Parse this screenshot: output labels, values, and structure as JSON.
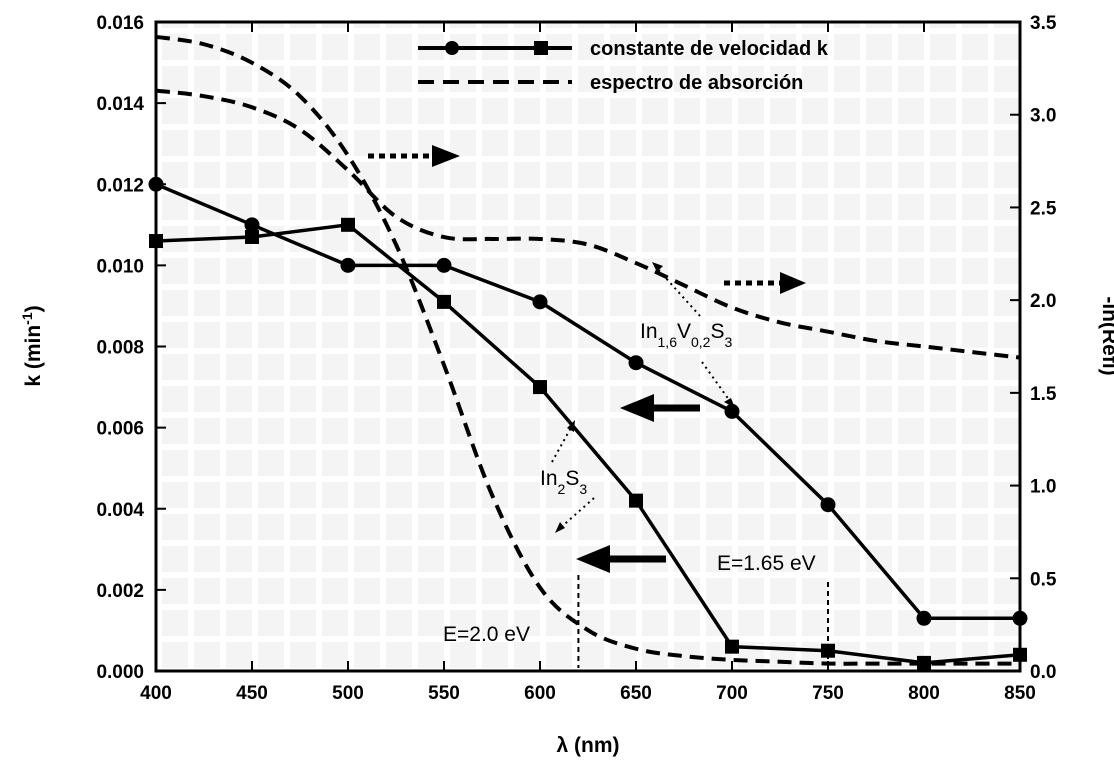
{
  "chart_data": {
    "type": "line",
    "xlabel": "λ (nm)",
    "ylabel_left": {
      "main": "k (min",
      "sup": "-1",
      "tail": ")"
    },
    "ylabel_right": "-ln(Refl)",
    "xlim": [
      400,
      850
    ],
    "ylim_left": [
      0.0,
      0.016
    ],
    "ylim_right": [
      0.0,
      3.5
    ],
    "x_ticks": [
      400,
      450,
      500,
      550,
      600,
      650,
      700,
      750,
      800,
      850
    ],
    "x_tick_labels": [
      "400",
      "450",
      "500",
      "550",
      "600",
      "650",
      "700",
      "750",
      "800",
      "850"
    ],
    "y_left_ticks": [
      0.0,
      0.002,
      0.004,
      0.006,
      0.008,
      0.01,
      0.012,
      0.014,
      0.016
    ],
    "y_left_tick_labels": [
      "0.000",
      "0.002",
      "0.004",
      "0.006",
      "0.008",
      "0.010",
      "0.012",
      "0.014",
      "0.016"
    ],
    "y_right_ticks": [
      0.0,
      0.5,
      1.0,
      1.5,
      2.0,
      2.5,
      3.0,
      3.5
    ],
    "y_right_tick_labels": [
      "0.0",
      "0.5",
      "1.0",
      "1.5",
      "2.0",
      "2.5",
      "3.0",
      "3.5"
    ],
    "grid": false,
    "legend_position": "top-right",
    "legend": [
      {
        "label": "constante de velocidad k",
        "style": "solid-markers"
      },
      {
        "label": "espectro de absorción",
        "style": "dashed"
      }
    ],
    "series": [
      {
        "axis": "left",
        "marker": "circle",
        "line_style": "solid",
        "x": [
          400,
          450,
          500,
          550,
          600,
          650,
          700,
          750,
          800,
          850
        ],
        "values": [
          0.012,
          0.011,
          0.01,
          0.01,
          0.0091,
          0.0076,
          0.0064,
          0.0041,
          0.0013,
          0.0013
        ]
      },
      {
        "axis": "left",
        "marker": "square",
        "line_style": "solid",
        "x": [
          400,
          450,
          500,
          550,
          600,
          650,
          700,
          750,
          800,
          850
        ],
        "values": [
          0.0106,
          0.0107,
          0.011,
          0.0091,
          0.007,
          0.0042,
          0.0006,
          0.0005,
          0.0002,
          0.0004
        ]
      },
      {
        "axis": "right",
        "line_style": "dashed",
        "x": [
          400,
          425,
          450,
          475,
          500,
          525,
          550,
          575,
          600,
          625,
          650,
          675,
          700,
          725,
          750,
          775,
          800,
          825,
          850
        ],
        "values": [
          3.13,
          3.1,
          3.04,
          2.92,
          2.7,
          2.45,
          2.34,
          2.33,
          2.33,
          2.3,
          2.2,
          2.08,
          1.96,
          1.88,
          1.83,
          1.78,
          1.75,
          1.72,
          1.69
        ]
      },
      {
        "axis": "right",
        "line_style": "dashed",
        "x": [
          400,
          425,
          450,
          475,
          500,
          525,
          550,
          575,
          600,
          625,
          650,
          675,
          700,
          725,
          750,
          775,
          800,
          825,
          850
        ],
        "values": [
          3.42,
          3.38,
          3.28,
          3.1,
          2.78,
          2.3,
          1.65,
          0.95,
          0.45,
          0.22,
          0.12,
          0.08,
          0.06,
          0.05,
          0.04,
          0.04,
          0.04,
          0.04,
          0.04
        ]
      }
    ],
    "annotations": {
      "label_in16v02s3": {
        "parts": [
          "In",
          "1,6",
          "V",
          "0,2",
          "S",
          "3"
        ]
      },
      "label_in2s3": {
        "parts": [
          "In",
          "2",
          "S",
          "3"
        ]
      },
      "energy_1": "E=1.65 eV",
      "energy_2": "E=2.0 eV",
      "energy_1_x": 750,
      "energy_2_x": 620
    }
  }
}
